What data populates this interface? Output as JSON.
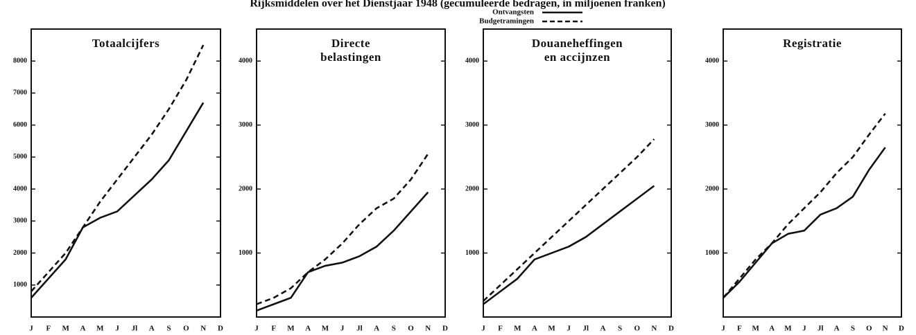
{
  "title": "Rijksmiddelen over het Dienstjaar 1948 (gecumuleerde bedragen, in miljoenen franken)",
  "chart_data": [
    {
      "type": "line",
      "title": [
        "Totaalcijfers"
      ],
      "categories": [
        "J",
        "F",
        "M",
        "A",
        "M",
        "J",
        "Jl",
        "A",
        "S",
        "O",
        "N",
        "D"
      ],
      "ylim": [
        0,
        9000
      ],
      "yticks": [
        1000,
        2000,
        3000,
        4000,
        5000,
        6000,
        7000,
        8000
      ],
      "series": [
        {
          "name": "Ontvangsten",
          "color": "#111111",
          "dashed": false,
          "values": [
            600,
            1200,
            1800,
            2800,
            3100,
            3300,
            3800,
            4300,
            4900,
            5800,
            6700,
            null
          ]
        },
        {
          "name": "Budgetramingen",
          "color": "#111111",
          "dashed": true,
          "values": [
            800,
            1400,
            2000,
            2800,
            3600,
            4300,
            5000,
            5700,
            6500,
            7400,
            8500,
            null
          ]
        }
      ]
    },
    {
      "type": "line",
      "title": [
        "Directe",
        "belastingen"
      ],
      "categories": [
        "J",
        "F",
        "M",
        "A",
        "M",
        "J",
        "Jl",
        "A",
        "S",
        "O",
        "N",
        "D"
      ],
      "ylim": [
        0,
        4500
      ],
      "yticks": [
        1000,
        2000,
        3000,
        4000
      ],
      "series": [
        {
          "name": "Ontvangsten",
          "color": "#111111",
          "dashed": false,
          "values": [
            100,
            200,
            300,
            700,
            800,
            850,
            950,
            1100,
            1350,
            1650,
            1950,
            null
          ]
        },
        {
          "name": "Budgetramingen",
          "color": "#111111",
          "dashed": true,
          "values": [
            200,
            300,
            450,
            700,
            900,
            1150,
            1450,
            1700,
            1850,
            2150,
            2550,
            null
          ]
        }
      ]
    },
    {
      "type": "line",
      "title": [
        "Douaneheffingen",
        "en accijnzen"
      ],
      "categories": [
        "J",
        "F",
        "M",
        "A",
        "M",
        "J",
        "Jl",
        "A",
        "S",
        "O",
        "N",
        "D"
      ],
      "ylim": [
        0,
        4500
      ],
      "yticks": [
        1000,
        2000,
        3000,
        4000
      ],
      "series": [
        {
          "name": "Ontvangsten",
          "color": "#111111",
          "dashed": false,
          "values": [
            200,
            400,
            600,
            900,
            1000,
            1100,
            1250,
            1450,
            1650,
            1850,
            2050,
            null
          ]
        },
        {
          "name": "Budgetramingen",
          "color": "#111111",
          "dashed": true,
          "values": [
            250,
            500,
            750,
            1000,
            1250,
            1500,
            1750,
            2000,
            2250,
            2500,
            2780,
            null
          ]
        }
      ]
    },
    {
      "type": "line",
      "title": [
        "Registratie"
      ],
      "categories": [
        "J",
        "F",
        "M",
        "A",
        "M",
        "J",
        "Jl",
        "A",
        "S",
        "O",
        "N",
        "D"
      ],
      "ylim": [
        0,
        4500
      ],
      "yticks": [
        1000,
        2000,
        3000,
        4000
      ],
      "series": [
        {
          "name": "Ontvangsten",
          "color": "#111111",
          "dashed": false,
          "values": [
            300,
            550,
            850,
            1150,
            1300,
            1350,
            1600,
            1700,
            1880,
            2300,
            2650,
            null
          ]
        },
        {
          "name": "Budgetramingen",
          "color": "#111111",
          "dashed": true,
          "values": [
            300,
            600,
            900,
            1150,
            1450,
            1700,
            1950,
            2250,
            2500,
            2850,
            3180,
            null
          ]
        }
      ]
    }
  ]
}
